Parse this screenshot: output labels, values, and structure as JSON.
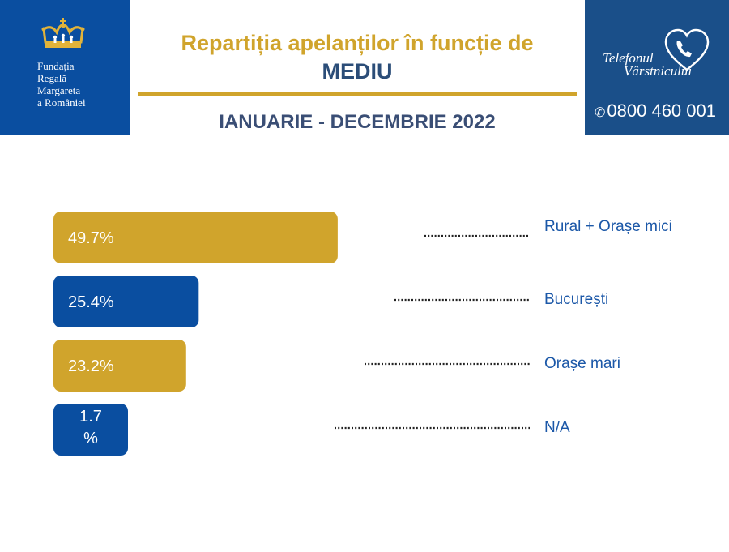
{
  "header": {
    "title_line1": "Repartiția apelanților în funcție de",
    "title_line2": "MEDIU",
    "period": "IANUARIE - DECEMBRIE 2022"
  },
  "logo_left": {
    "icon": "crown-icon",
    "lines": [
      "Fundația",
      "Regală",
      "Margareta",
      "a României"
    ]
  },
  "logo_right": {
    "icon": "heart-phone-icon",
    "name_line1": "Telefonul",
    "name_line2": "Vârstnicului",
    "phone": "0800 460 001"
  },
  "colors": {
    "gold": "#d0a42c",
    "blue": "#0a4ea0",
    "navy": "#2b4d78"
  },
  "chart_data": {
    "type": "bar",
    "orientation": "horizontal",
    "categories": [
      "Rural + Orașe mici",
      "București",
      "Orașe mari",
      "N/A"
    ],
    "values": [
      49.7,
      25.4,
      23.2,
      1.7
    ],
    "value_labels": [
      "49.7%",
      "25.4%",
      "23.2%",
      "1.7 %"
    ],
    "bar_colors": [
      "#d0a42c",
      "#0a4ea0",
      "#d0a42c",
      "#0a4ea0"
    ],
    "unit": "%"
  }
}
